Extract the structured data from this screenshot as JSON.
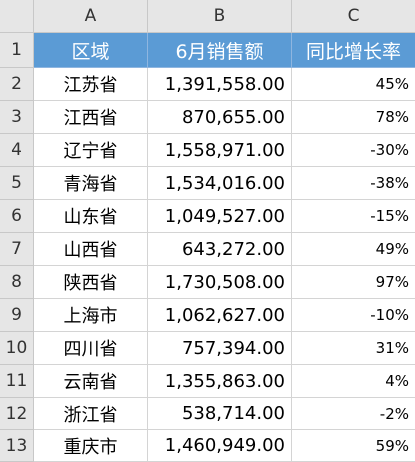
{
  "columns": [
    "A",
    "B",
    "C"
  ],
  "table": {
    "headers": [
      "区域",
      "6月销售额",
      "同比增长率"
    ],
    "rows": [
      {
        "num": "1"
      },
      {
        "num": "2",
        "region": "江苏省",
        "sales": "1,391,558.00",
        "growth": "45%"
      },
      {
        "num": "3",
        "region": "江西省",
        "sales": "870,655.00",
        "growth": "78%"
      },
      {
        "num": "4",
        "region": "辽宁省",
        "sales": "1,558,971.00",
        "growth": "-30%"
      },
      {
        "num": "5",
        "region": "青海省",
        "sales": "1,534,016.00",
        "growth": "-38%"
      },
      {
        "num": "6",
        "region": "山东省",
        "sales": "1,049,527.00",
        "growth": "-15%"
      },
      {
        "num": "7",
        "region": "山西省",
        "sales": "643,272.00",
        "growth": "49%"
      },
      {
        "num": "8",
        "region": "陕西省",
        "sales": "1,730,508.00",
        "growth": "97%"
      },
      {
        "num": "9",
        "region": "上海市",
        "sales": "1,062,627.00",
        "growth": "-10%"
      },
      {
        "num": "10",
        "region": "四川省",
        "sales": "757,394.00",
        "growth": "31%"
      },
      {
        "num": "11",
        "region": "云南省",
        "sales": "1,355,863.00",
        "growth": "4%"
      },
      {
        "num": "12",
        "region": "浙江省",
        "sales": "538,714.00",
        "growth": "-2%"
      },
      {
        "num": "13",
        "region": "重庆市",
        "sales": "1,460,949.00",
        "growth": "59%"
      }
    ]
  },
  "colors": {
    "header_fill": "#5b9bd5",
    "header_text": "#ffffff",
    "grid": "#d4d4d4"
  }
}
